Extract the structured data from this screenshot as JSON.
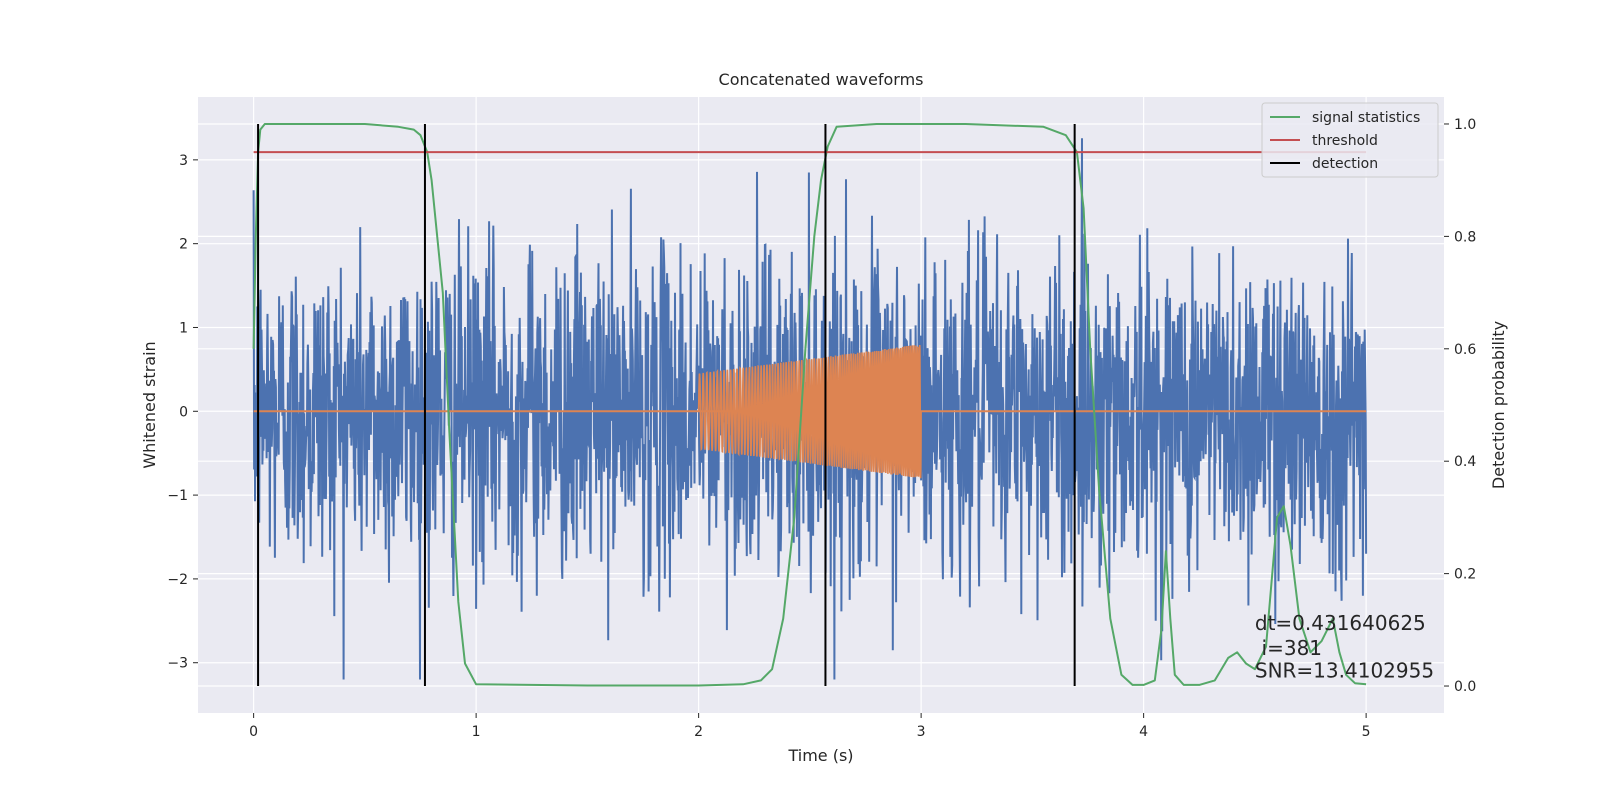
{
  "chart_data": {
    "type": "line",
    "title": "Concatenated waveforms",
    "xlabel": "Time (s)",
    "ylabel": "Whitened strain",
    "y2label": "Detection probability",
    "xlim": [
      -0.25,
      5.35
    ],
    "ylim": [
      -3.6,
      3.75
    ],
    "y2lim": [
      -0.048,
      1.048
    ],
    "xticks": [
      0,
      1,
      2,
      3,
      4,
      5
    ],
    "yticks": [
      -3,
      -2,
      -1,
      0,
      1,
      2,
      3
    ],
    "y2ticks": [
      0.0,
      0.2,
      0.4,
      0.6,
      0.8,
      1.0
    ],
    "xtick_labels": [
      "0",
      "1",
      "2",
      "3",
      "4",
      "5"
    ],
    "ytick_labels": [
      "−3",
      "−2",
      "−1",
      "0",
      "1",
      "2",
      "3"
    ],
    "y2tick_labels": [
      "0.0",
      "0.2",
      "0.4",
      "0.6",
      "0.8",
      "1.0"
    ],
    "grid": true,
    "legend": {
      "placement": "top-right",
      "entries": [
        {
          "label": "signal statistics",
          "color": "#55a868"
        },
        {
          "label": "threshold",
          "color": "#c44e52"
        },
        {
          "label": "detection",
          "color": "#000000"
        }
      ]
    },
    "noise": {
      "color": "#4c72b0",
      "x_range": [
        0,
        5
      ],
      "typical_amplitude": 1.0,
      "peak_range": [
        -3.2,
        3.4
      ]
    },
    "injected_signal": {
      "color": "#dd8452",
      "x_range": [
        2.0,
        3.0
      ],
      "amplitude_start": 0.45,
      "amplitude_end": 0.8,
      "zero_line_x_range": [
        0,
        5
      ]
    },
    "series": [
      {
        "name": "signal statistics",
        "axis": "right",
        "color": "#55a868",
        "x": [
          0.0,
          0.01,
          0.02,
          0.03,
          0.05,
          0.1,
          0.3,
          0.5,
          0.65,
          0.72,
          0.75,
          0.78,
          0.8,
          0.85,
          0.88,
          0.92,
          0.95,
          1.0,
          1.5,
          2.0,
          2.2,
          2.28,
          2.33,
          2.38,
          2.43,
          2.48,
          2.52,
          2.55,
          2.58,
          2.62,
          2.8,
          3.2,
          3.55,
          3.65,
          3.7,
          3.73,
          3.76,
          3.8,
          3.85,
          3.9,
          3.95,
          4.0,
          4.05,
          4.08,
          4.1,
          4.12,
          4.14,
          4.18,
          4.25,
          4.32,
          4.38,
          4.42,
          4.46,
          4.5,
          4.55,
          4.6,
          4.63,
          4.66,
          4.7,
          4.75,
          4.8,
          4.85,
          4.88,
          4.91,
          4.95,
          5.0
        ],
        "y": [
          0.6,
          0.8,
          0.95,
          0.99,
          1.0,
          1.0,
          1.0,
          1.0,
          0.995,
          0.99,
          0.98,
          0.95,
          0.9,
          0.7,
          0.45,
          0.15,
          0.04,
          0.003,
          0.001,
          0.001,
          0.003,
          0.01,
          0.03,
          0.12,
          0.3,
          0.6,
          0.8,
          0.9,
          0.96,
          0.995,
          1.0,
          1.0,
          0.995,
          0.98,
          0.95,
          0.85,
          0.6,
          0.35,
          0.12,
          0.02,
          0.002,
          0.002,
          0.01,
          0.1,
          0.24,
          0.12,
          0.02,
          0.002,
          0.002,
          0.01,
          0.05,
          0.06,
          0.04,
          0.03,
          0.07,
          0.3,
          0.32,
          0.25,
          0.12,
          0.06,
          0.08,
          0.12,
          0.06,
          0.02,
          0.005,
          0.003
        ]
      },
      {
        "name": "threshold",
        "axis": "right",
        "color": "#c44e52",
        "x": [
          0.0,
          5.0
        ],
        "y": [
          0.95,
          0.95
        ]
      }
    ],
    "detections": {
      "color": "#000000",
      "x": [
        0.02,
        0.77,
        2.57,
        3.69
      ]
    },
    "annotations": [
      {
        "text": "dt=0.431640625",
        "x": 4.5,
        "y": 0.1
      },
      {
        "text": "i=381",
        "x": 4.53,
        "y": 0.055
      },
      {
        "text": "SNR=13.4102955",
        "x": 4.5,
        "y": 0.015
      }
    ]
  }
}
